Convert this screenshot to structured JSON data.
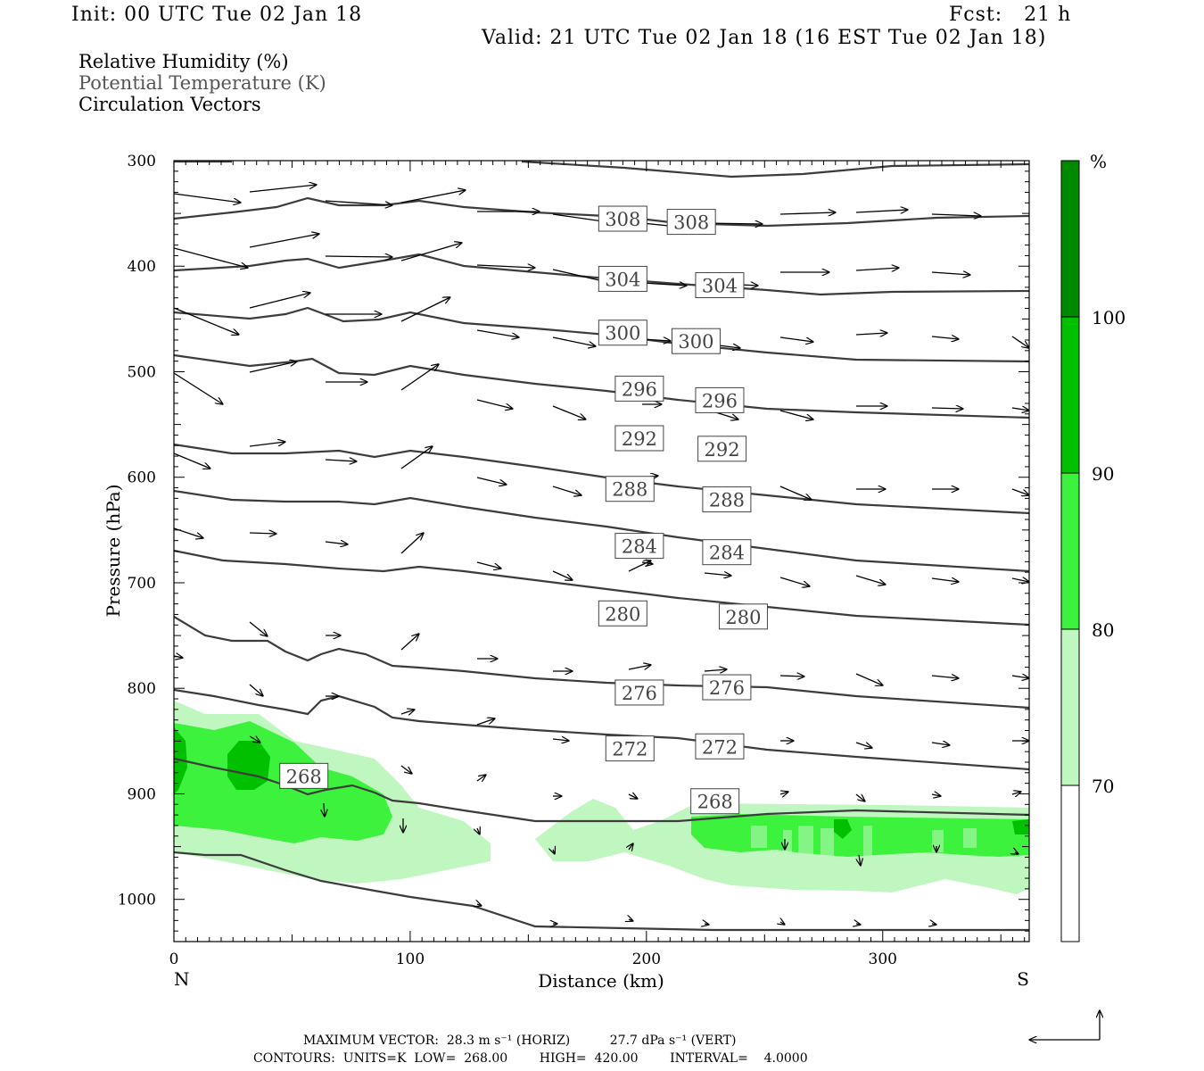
{
  "header": {
    "init": "Init: 00 UTC Tue 02 Jan 18",
    "fcst": "Fcst:   21 h",
    "valid": "Valid: 21 UTC Tue 02 Jan 18 (16 EST Tue 02 Jan 18)"
  },
  "legend": {
    "rh": "Relative Humidity (%)",
    "theta": "Potential Temperature (K)",
    "vectors": "Circulation Vectors"
  },
  "footer": {
    "line1": "MAXIMUM VECTOR:  28.3 m s⁻¹ (HORIZ)          27.7 dPa s⁻¹ (VERT)",
    "line2": "CONTOURS:  UNITS=K  LOW=  268.00        HIGH=  420.00        INTERVAL=    4.0000"
  },
  "colors": {
    "rh70": "#c0f6c0",
    "rh80": "#3df23d",
    "rh90": "#00c000",
    "rh100": "#008a00",
    "contour": "#3c3c3c"
  },
  "chart_data": {
    "type": "contour",
    "xlabel": "Distance (km)",
    "ylabel": "Pressure (hPa)",
    "xlim": [
      0,
      362
    ],
    "ylim": [
      300,
      1040
    ],
    "x_ticks": [
      0,
      100,
      200,
      300
    ],
    "y_ticks": [
      300,
      400,
      500,
      600,
      700,
      800,
      900,
      1000
    ],
    "x_end_labels": [
      "N",
      "S"
    ],
    "colorbar": {
      "unit": "%",
      "levels": [
        70,
        80,
        90,
        100
      ]
    },
    "contour_labels": [
      {
        "value": "308",
        "x": 190,
        "p": 355
      },
      {
        "value": "308",
        "x": 219,
        "p": 358
      },
      {
        "value": "304",
        "x": 190,
        "p": 412
      },
      {
        "value": "304",
        "x": 231,
        "p": 418
      },
      {
        "value": "300",
        "x": 190,
        "p": 463
      },
      {
        "value": "300",
        "x": 221,
        "p": 471
      },
      {
        "value": "296",
        "x": 197,
        "p": 516
      },
      {
        "value": "296",
        "x": 231,
        "p": 527
      },
      {
        "value": "292",
        "x": 197,
        "p": 563
      },
      {
        "value": "292",
        "x": 232,
        "p": 573
      },
      {
        "value": "288",
        "x": 193,
        "p": 611
      },
      {
        "value": "288",
        "x": 234,
        "p": 621
      },
      {
        "value": "284",
        "x": 197,
        "p": 665
      },
      {
        "value": "284",
        "x": 234,
        "p": 671
      },
      {
        "value": "280",
        "x": 190,
        "p": 729
      },
      {
        "value": "280",
        "x": 241,
        "p": 732
      },
      {
        "value": "276",
        "x": 197,
        "p": 804
      },
      {
        "value": "276",
        "x": 234,
        "p": 799
      },
      {
        "value": "272",
        "x": 193,
        "p": 857
      },
      {
        "value": "272",
        "x": 231,
        "p": 855
      },
      {
        "value": "268",
        "x": 55,
        "p": 883
      },
      {
        "value": "268",
        "x": 229,
        "p": 907
      }
    ]
  }
}
